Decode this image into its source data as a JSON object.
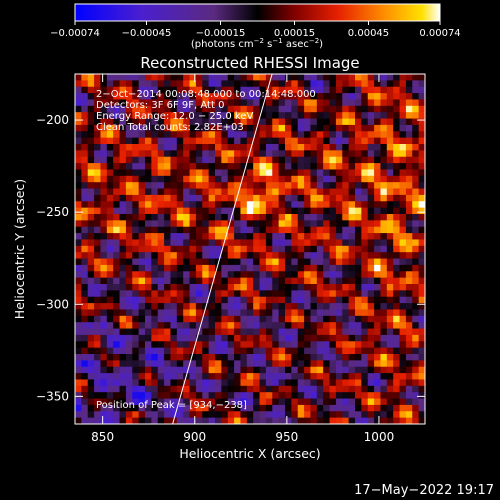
{
  "chart_data": {
    "type": "heatmap",
    "title": "Reconstructed RHESSI Image",
    "xlabel": "Heliocentric X (arcsec)",
    "ylabel": "Heliocentric Y (arcsec)",
    "xlim": [
      835,
      1025
    ],
    "ylim": [
      -365,
      -175
    ],
    "x_ticks": [
      850,
      900,
      950,
      1000
    ],
    "x_tick_labels": [
      "850",
      "900",
      "950",
      "1000"
    ],
    "y_ticks": [
      -200,
      -250,
      -300,
      -350
    ],
    "y_tick_labels": [
      "−200",
      "−250",
      "−300",
      "−350"
    ],
    "colorbar": {
      "min": -0.00074,
      "max": 0.00074,
      "ticks": [
        -0.00074,
        -0.00045,
        -0.00015,
        0.00015,
        0.00045,
        0.00074
      ],
      "tick_labels": [
        "−0.00074",
        "−0.00045",
        "−0.00015",
        "0.00015",
        "0.00045",
        "0.00074"
      ],
      "unit_prefix": "(photons cm",
      "unit_exp1": "−2",
      "unit_mid1": " s",
      "unit_exp2": "−1",
      "unit_mid2": " asec",
      "unit_exp3": "−2",
      "unit_suffix": ")"
    },
    "annotations": [
      "2−Oct−2014 00:08:48.000 to 00:14:48.000",
      "Detectors: 3F 6F 9F, Att 0",
      "Energy Range: 12.0 − 25.0 keV",
      "Clean     Total counts: 2.82E+03"
    ],
    "peak_label": "Position of Peak = [934,−238]",
    "peak": [
      934,
      -238
    ],
    "limb_line": [
      [
        888,
        -365
      ],
      [
        942,
        -175
      ]
    ],
    "grid": false
  },
  "footer": {
    "date_stamp": "17−May−2022 19:17"
  },
  "colors": {
    "background": "#000000",
    "foreground": "#ffffff",
    "colormap": [
      "#0000ff",
      "#5a1fa0",
      "#3a1f40",
      "#000000",
      "#6b0000",
      "#d81a00",
      "#ff7f00",
      "#ffd200",
      "#ffffff"
    ]
  }
}
